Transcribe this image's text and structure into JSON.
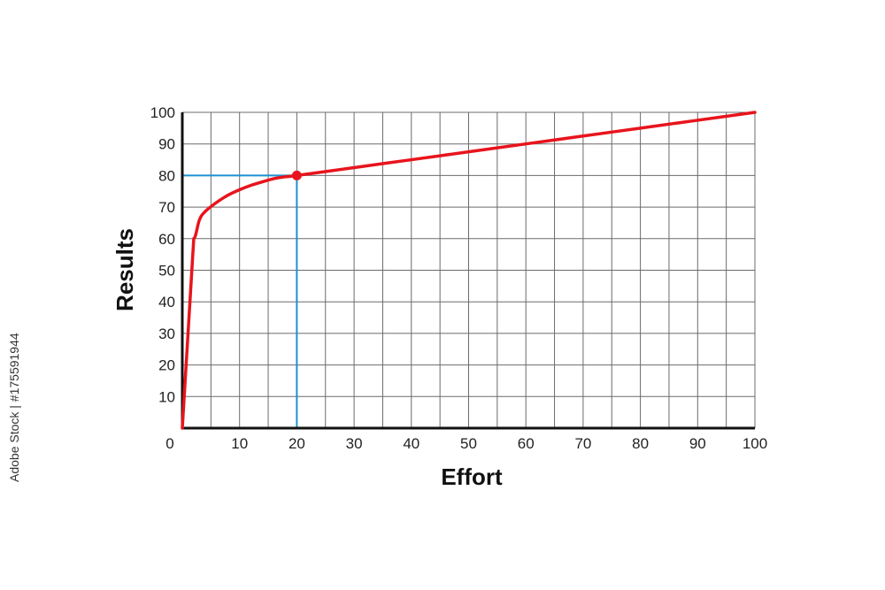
{
  "chart_data": {
    "type": "line",
    "title": "",
    "xlabel": "Effort",
    "ylabel": "Results",
    "xlim": [
      0,
      100
    ],
    "ylim": [
      0,
      100
    ],
    "x_ticks": [
      0,
      10,
      20,
      30,
      40,
      50,
      60,
      70,
      80,
      90,
      100
    ],
    "y_ticks": [
      10,
      20,
      30,
      40,
      50,
      60,
      70,
      80,
      90,
      100
    ],
    "grid": true,
    "series": [
      {
        "color": "#e8141c",
        "points": [
          [
            0,
            0
          ],
          [
            2,
            60
          ],
          [
            3,
            66
          ],
          [
            4,
            68.6
          ],
          [
            6,
            71.5
          ],
          [
            8,
            73.8
          ],
          [
            10,
            75.5
          ],
          [
            12,
            76.9
          ],
          [
            14,
            78
          ],
          [
            16,
            79
          ],
          [
            18,
            79.6
          ],
          [
            20,
            80
          ],
          [
            30,
            82.5
          ],
          [
            40,
            85
          ],
          [
            50,
            87.5
          ],
          [
            60,
            90
          ],
          [
            70,
            92.5
          ],
          [
            80,
            95
          ],
          [
            90,
            97.5
          ],
          [
            100,
            100
          ]
        ]
      }
    ],
    "highlight": {
      "x": 20,
      "y": 80,
      "color": "#1e90d2",
      "marker_color": "#e8141c"
    }
  },
  "watermark": "Adobe Stock | #175591944"
}
